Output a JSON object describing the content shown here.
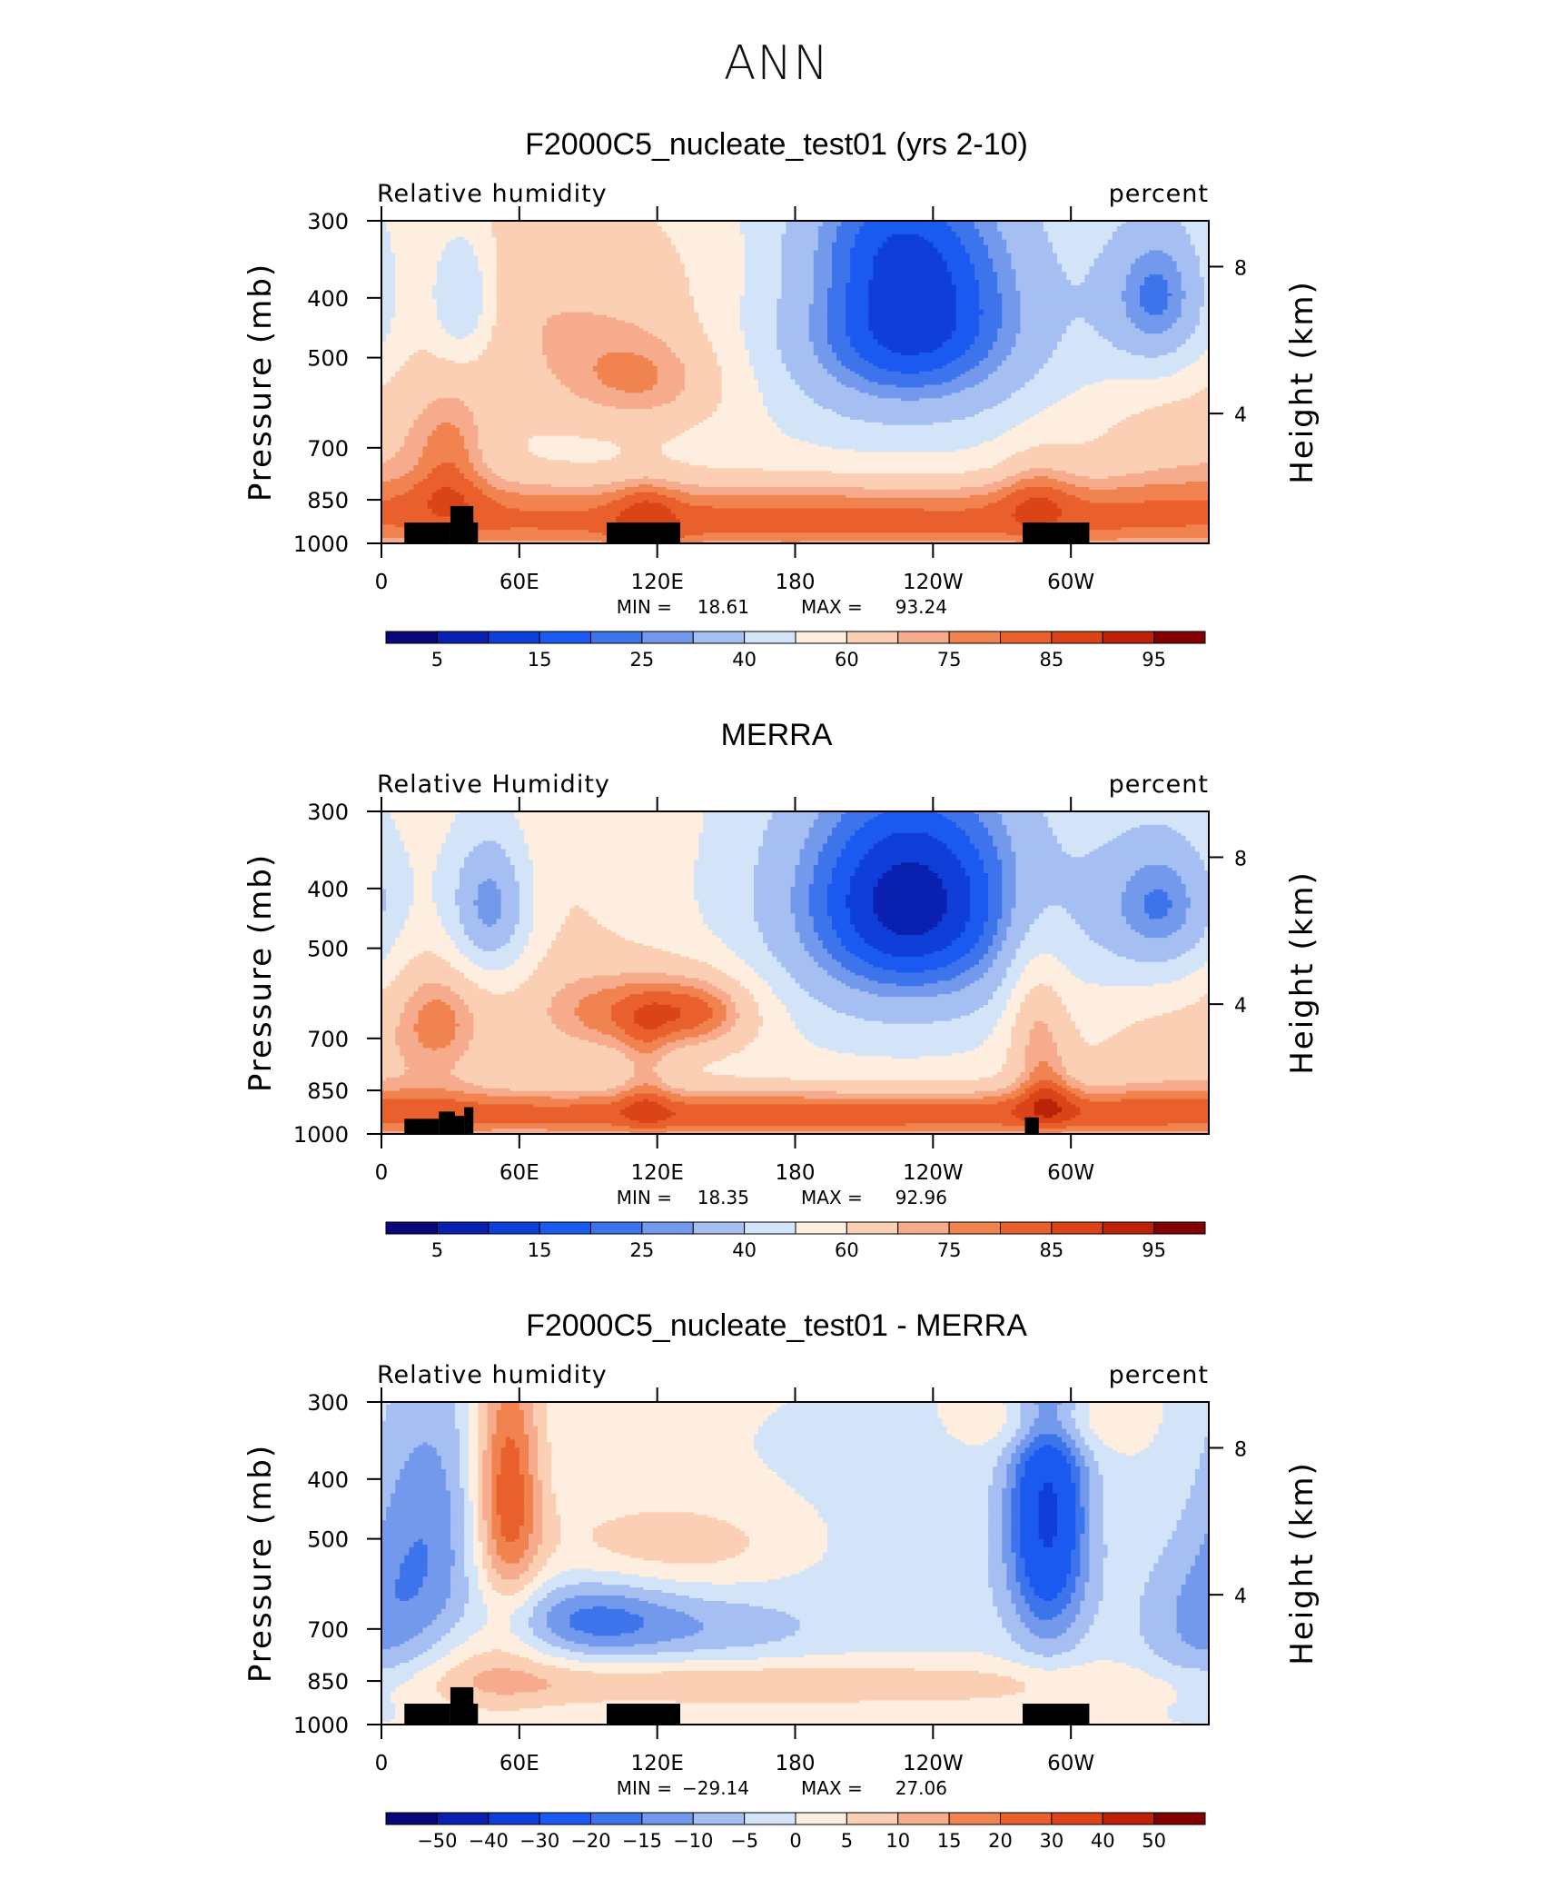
{
  "title": "ANN",
  "colors": {
    "scale": [
      "#08087a",
      "#0a20b0",
      "#0f3ed8",
      "#1a5af0",
      "#3d74ec",
      "#7399ec",
      "#a6bff2",
      "#d3e4f8",
      "#fdeee0",
      "#fbcfb3",
      "#f6ac8c",
      "#f0834f",
      "#e9602c",
      "#da4417",
      "#bb2207",
      "#830000"
    ],
    "land": "#000000"
  },
  "chart_data": [
    {
      "type": "heatmap",
      "title": "F2000C5_nucleate_test01 (yrs 2-10)",
      "left_label": "Relative humidity",
      "right_label": "percent",
      "ylabel": "Pressure (mb)",
      "y2label": "Height (km)",
      "x_ticks": [
        "0",
        "60E",
        "120E",
        "180",
        "120W",
        "60W"
      ],
      "y_ticks": [
        "300",
        "400",
        "500",
        "700",
        "850",
        "1000"
      ],
      "y2_ticks": [
        "8",
        "4"
      ],
      "stats": {
        "min_label": "MIN =",
        "min": "18.61",
        "max_label": "MAX =",
        "max": "93.24"
      },
      "colorbar_labels": [
        "5",
        "15",
        "25",
        "40",
        "60",
        "75",
        "85",
        "95"
      ],
      "ylim": [
        1000,
        300
      ],
      "xlim": [
        0,
        360
      ],
      "land": [
        {
          "lon": [
            10,
            30
          ],
          "p_top": 925
        },
        {
          "lon": [
            30,
            40
          ],
          "p_top": 870
        },
        {
          "lon": [
            30,
            42
          ],
          "p_top": 925
        },
        {
          "lon": [
            98,
            130
          ],
          "p_top": 925
        },
        {
          "lon": [
            279,
            308
          ],
          "p_top": 925
        }
      ],
      "blobs": [
        {
          "lon": 180,
          "p": 950,
          "slon": 260,
          "sp": 70,
          "v": 24
        },
        {
          "lon": 180,
          "p": 840,
          "slon": 260,
          "sp": 60,
          "v": 14
        },
        {
          "lon": 30,
          "p": 720,
          "slon": 12,
          "sp": 120,
          "v": 14
        },
        {
          "lon": 115,
          "p": 540,
          "slon": 30,
          "sp": 80,
          "v": 20
        },
        {
          "lon": 115,
          "p": 900,
          "slon": 10,
          "sp": 120,
          "v": 8
        },
        {
          "lon": 285,
          "p": 800,
          "slon": 12,
          "sp": 100,
          "v": 10
        },
        {
          "lon": 60,
          "p": 400,
          "slon": 40,
          "sp": 120,
          "v": 12
        },
        {
          "lon": 180,
          "p": 350,
          "slon": 60,
          "sp": 70,
          "v": 8
        },
        {
          "lon": 355,
          "p": 700,
          "slon": 40,
          "sp": 140,
          "v": 12
        },
        {
          "lon": 35,
          "p": 400,
          "slon": 10,
          "sp": 70,
          "v": -26
        },
        {
          "lon": 230,
          "p": 420,
          "slon": 45,
          "sp": 150,
          "v": -46
        },
        {
          "lon": 339,
          "p": 400,
          "slon": 18,
          "sp": 90,
          "v": -32
        },
        {
          "lon": 215,
          "p": 310,
          "slon": 35,
          "sp": 60,
          "v": -10
        }
      ],
      "base": 55
    },
    {
      "type": "heatmap",
      "title": "MERRA",
      "left_label": "Relative Humidity",
      "right_label": "percent",
      "ylabel": "Pressure (mb)",
      "y2label": "Height (km)",
      "x_ticks": [
        "0",
        "60E",
        "120E",
        "180",
        "120W",
        "60W"
      ],
      "y_ticks": [
        "300",
        "400",
        "500",
        "700",
        "850",
        "1000"
      ],
      "y2_ticks": [
        "8",
        "4"
      ],
      "stats": {
        "min_label": "MIN =",
        "min": "18.35",
        "max_label": "MAX =",
        "max": "92.96"
      },
      "colorbar_labels": [
        "5",
        "15",
        "25",
        "40",
        "60",
        "75",
        "85",
        "95"
      ],
      "ylim": [
        1000,
        300
      ],
      "xlim": [
        0,
        360
      ],
      "land": [
        {
          "lon": [
            10,
            25
          ],
          "p_top": 945
        },
        {
          "lon": [
            25,
            32
          ],
          "p_top": 920
        },
        {
          "lon": [
            32,
            36
          ],
          "p_top": 935
        },
        {
          "lon": [
            36,
            40
          ],
          "p_top": 905
        },
        {
          "lon": [
            280,
            286
          ],
          "p_top": 940
        }
      ],
      "blobs": [
        {
          "lon": 180,
          "p": 950,
          "slon": 260,
          "sp": 60,
          "v": 24
        },
        {
          "lon": 180,
          "p": 880,
          "slon": 260,
          "sp": 50,
          "v": 10
        },
        {
          "lon": 25,
          "p": 650,
          "slon": 14,
          "sp": 110,
          "v": 16
        },
        {
          "lon": 100,
          "p": 640,
          "slon": 25,
          "sp": 80,
          "v": 20
        },
        {
          "lon": 140,
          "p": 630,
          "slon": 20,
          "sp": 70,
          "v": 24
        },
        {
          "lon": 115,
          "p": 800,
          "slon": 8,
          "sp": 120,
          "v": 10
        },
        {
          "lon": 285,
          "p": 640,
          "slon": 10,
          "sp": 140,
          "v": 20
        },
        {
          "lon": 290,
          "p": 850,
          "slon": 8,
          "sp": 80,
          "v": 10
        },
        {
          "lon": 60,
          "p": 450,
          "slon": 30,
          "sp": 150,
          "v": 8
        },
        {
          "lon": 350,
          "p": 750,
          "slon": 40,
          "sp": 160,
          "v": 10
        },
        {
          "lon": 47,
          "p": 430,
          "slon": 14,
          "sp": 90,
          "v": -36
        },
        {
          "lon": 230,
          "p": 420,
          "slon": 45,
          "sp": 160,
          "v": -48
        },
        {
          "lon": 340,
          "p": 430,
          "slon": 20,
          "sp": 90,
          "v": -30
        }
      ],
      "base": 55
    },
    {
      "type": "heatmap",
      "title": "F2000C5_nucleate_test01 - MERRA",
      "left_label": "Relative humidity",
      "right_label": "percent",
      "ylabel": "Pressure (mb)",
      "y2label": "Height (km)",
      "x_ticks": [
        "0",
        "60E",
        "120E",
        "180",
        "120W",
        "60W"
      ],
      "y_ticks": [
        "300",
        "400",
        "500",
        "700",
        "850",
        "1000"
      ],
      "y2_ticks": [
        "8",
        "4"
      ],
      "stats": {
        "min_label": "MIN =",
        "min": "−29.14",
        "max_label": "MAX =",
        "max": "27.06"
      },
      "colorbar_labels": [
        "−50",
        "−40",
        "−30",
        "−20",
        "−15",
        "−10",
        "−5",
        "0",
        "5",
        "10",
        "15",
        "20",
        "30",
        "40",
        "50"
      ],
      "ylim": [
        1000,
        300
      ],
      "xlim": [
        0,
        360
      ],
      "land": [
        {
          "lon": [
            10,
            30
          ],
          "p_top": 925
        },
        {
          "lon": [
            30,
            40
          ],
          "p_top": 870
        },
        {
          "lon": [
            30,
            42
          ],
          "p_top": 925
        },
        {
          "lon": [
            98,
            130
          ],
          "p_top": 925
        },
        {
          "lon": [
            279,
            308
          ],
          "p_top": 925
        }
      ],
      "blobs": [
        {
          "lon": 55,
          "p": 420,
          "slon": 10,
          "sp": 140,
          "v": 24
        },
        {
          "lon": 130,
          "p": 510,
          "slon": 40,
          "sp": 60,
          "v": 8
        },
        {
          "lon": 180,
          "p": 860,
          "slon": 120,
          "sp": 50,
          "v": 9
        },
        {
          "lon": 45,
          "p": 790,
          "slon": 25,
          "sp": 120,
          "v": 8
        },
        {
          "lon": 290,
          "p": 320,
          "slon": 20,
          "sp": 30,
          "v": 12
        },
        {
          "lon": 20,
          "p": 500,
          "slon": 18,
          "sp": 200,
          "v": -14
        },
        {
          "lon": 90,
          "p": 680,
          "slon": 28,
          "sp": 70,
          "v": -18
        },
        {
          "lon": 150,
          "p": 700,
          "slon": 30,
          "sp": 60,
          "v": -7
        },
        {
          "lon": 290,
          "p": 450,
          "slon": 12,
          "sp": 180,
          "v": -30
        },
        {
          "lon": 355,
          "p": 700,
          "slon": 20,
          "sp": 140,
          "v": -10
        },
        {
          "lon": 240,
          "p": 550,
          "slon": 70,
          "sp": 180,
          "v": -4
        }
      ],
      "base": 1
    }
  ]
}
